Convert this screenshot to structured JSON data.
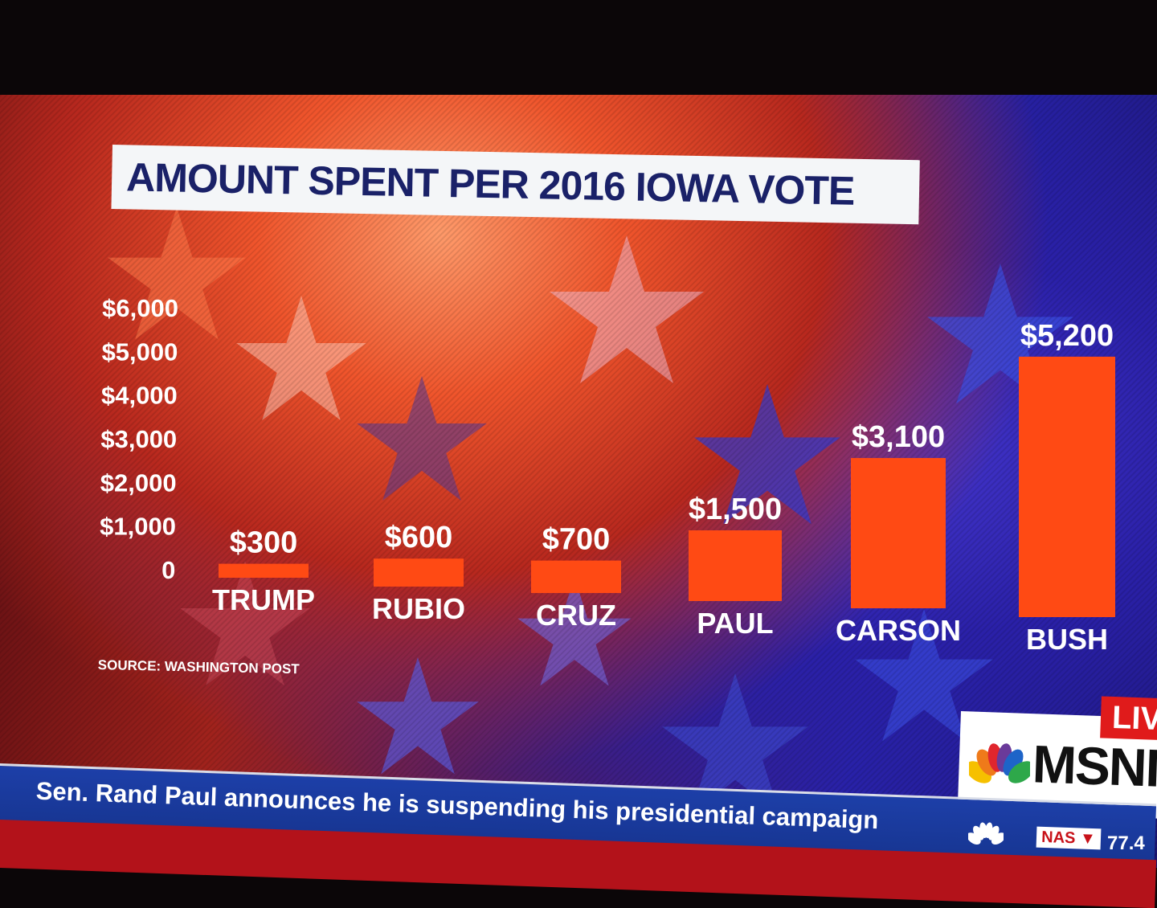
{
  "chart_data": {
    "type": "bar",
    "title": "AMOUNT SPENT PER 2016 IOWA VOTE",
    "categories": [
      "TRUMP",
      "RUBIO",
      "CRUZ",
      "PAUL",
      "CARSON",
      "BUSH"
    ],
    "values": [
      300,
      600,
      700,
      1500,
      3100,
      5200
    ],
    "value_labels": [
      "$300",
      "$600",
      "$700",
      "$1,500",
      "$3,100",
      "$5,200"
    ],
    "ylim": [
      0,
      6000
    ],
    "yticks": [
      "0",
      "$1,000",
      "$2,000",
      "$3,000",
      "$4,000",
      "$5,000",
      "$6,000"
    ],
    "xlabel": "",
    "ylabel": "",
    "bar_color": "#ff4a14",
    "grid": false,
    "source": "SOURCE: WASHINGTON POST"
  },
  "ticker": {
    "headline": "Sen. Rand Paul announces he is suspending his presidential campaign",
    "market_label": "NAS ▼",
    "market_value": "77.4"
  },
  "network": {
    "name": "MSNI",
    "live": "LIV"
  },
  "colors": {
    "title_text": "#1a2168",
    "ticker_blue": "#1d3fa8",
    "ticker_red": "#b3121a",
    "live_red": "#e01b1b"
  }
}
